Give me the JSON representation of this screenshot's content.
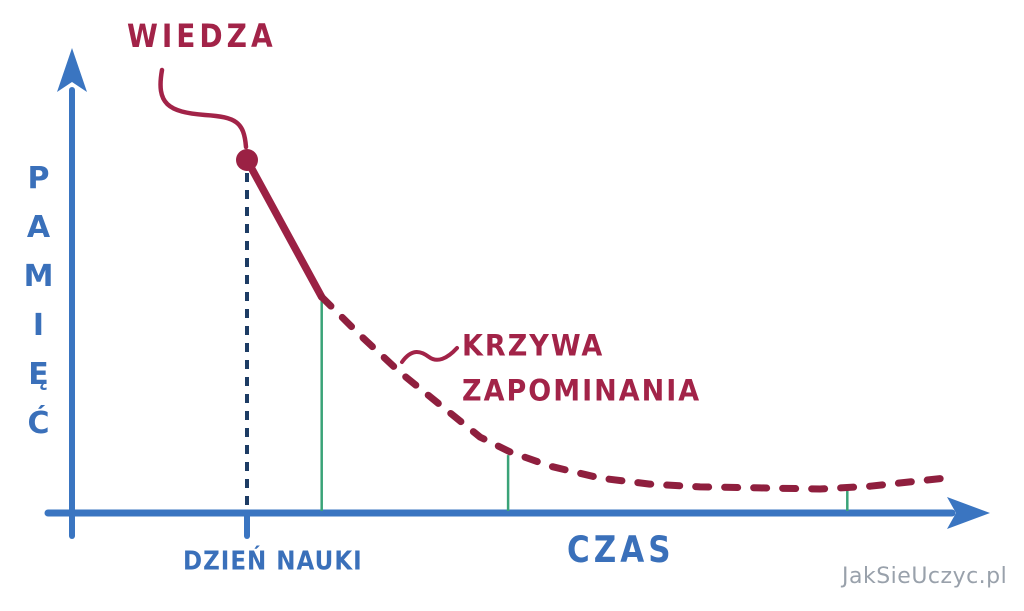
{
  "labels": {
    "wiedza": "WIEDZA",
    "krzywa_line1": "KRZYWA",
    "krzywa_line2": "ZAPOMINANIA",
    "y_axis": "PAMIĘĆ",
    "x_axis": "CZAS",
    "study_day": "DZIEŃ NAUKI",
    "watermark": "JakSieUczyc.pl"
  },
  "colors": {
    "axis_blue": "#3a75c1",
    "text_blue": "#3a70ba",
    "curve_maroon": "#9b2144",
    "dash_maroon": "#8f1f3e",
    "label_maroon": "#a22348",
    "marker_green": "#3aa378",
    "study_day_navy": "#1d3c64",
    "watermark_gray": "#99a1ab"
  },
  "chart_data": {
    "type": "line",
    "title": "",
    "xlabel": "CZAS",
    "ylabel": "PAMIĘĆ",
    "xlim": [
      0,
      100
    ],
    "ylim": [
      0,
      100
    ],
    "grid": false,
    "legend": "none",
    "annotations": [
      "WIEDZA",
      "KRZYWA ZAPOMINANIA",
      "DZIEŃ NAUKI"
    ],
    "series": [
      {
        "name": "KRZYWA ZAPOMINANIA",
        "solid_segment_end_index": 1,
        "points": [
          [
            0,
            100
          ],
          [
            10.7,
            61.2
          ],
          [
            16.2,
            50.4
          ],
          [
            21.9,
            39.9
          ],
          [
            27.7,
            30.6
          ],
          [
            33.4,
            21.5
          ],
          [
            37.7,
            17.3
          ],
          [
            43.4,
            13.3
          ],
          [
            50.6,
            9.9
          ],
          [
            57.7,
            8.2
          ],
          [
            64.9,
            7.4
          ],
          [
            73.5,
            7.1
          ],
          [
            82.1,
            6.8
          ],
          [
            89.3,
            7.6
          ],
          [
            95,
            8.8
          ],
          [
            100,
            9.9
          ]
        ]
      }
    ],
    "markers": [
      [
        10.7,
        61.2
      ],
      [
        37.4,
        16.4
      ],
      [
        86,
        6.9
      ]
    ]
  }
}
